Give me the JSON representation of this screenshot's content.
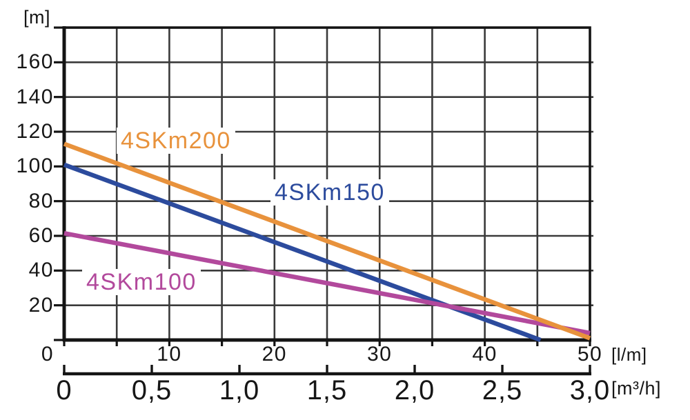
{
  "colors": {
    "background": "#ffffff",
    "axis": "#141414",
    "grid": "#3a3a3a",
    "text": "#161616"
  },
  "chart_data": {
    "type": "line",
    "title": "",
    "grid": true,
    "legend_position": "labels-on-chart",
    "y_axis": {
      "unit": "[m]",
      "min": 0,
      "max": 180,
      "grid_step": 20,
      "tick_labels": [
        "160",
        "140",
        "120",
        "100",
        "80",
        "60",
        "40",
        "20"
      ]
    },
    "x_axis_primary": {
      "unit": "[l/m]",
      "min": 0,
      "max": 50,
      "grid_step": 5,
      "tick_labels": [
        "0",
        "10",
        "20",
        "30",
        "40",
        "50"
      ]
    },
    "x_axis_secondary": {
      "unit": "[m³/h]",
      "min": 0,
      "max": 3,
      "tick_labels": [
        "0",
        "0,5",
        "1,0",
        "1,5",
        "2,0",
        "2,5",
        "3,0"
      ]
    },
    "series": [
      {
        "name": "4SKm150",
        "color": "#2C4B9D",
        "points_lm_m": [
          [
            0,
            101.0
          ],
          [
            45.3,
            0.0
          ]
        ]
      },
      {
        "name": "4SKm100",
        "color": "#B2499C",
        "points_lm_m": [
          [
            0,
            61.5
          ],
          [
            50.0,
            4.0
          ]
        ]
      },
      {
        "name": "4SKm200",
        "color": "#E8923C",
        "points_lm_m": [
          [
            0,
            113.0
          ],
          [
            50.0,
            1.0
          ]
        ]
      }
    ]
  }
}
